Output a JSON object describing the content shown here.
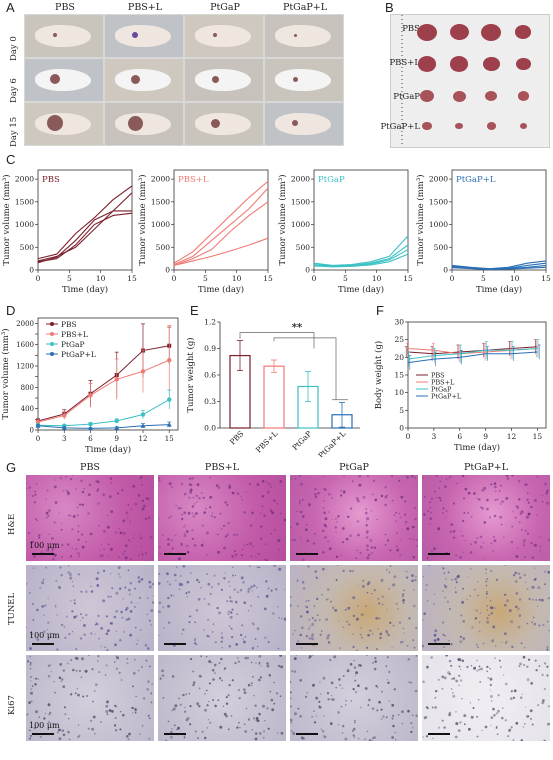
{
  "panels": {
    "A": "A",
    "B": "B",
    "C": "C",
    "D": "D",
    "E": "E",
    "F": "F",
    "G": "G"
  },
  "groups": [
    "PBS",
    "PBS+L",
    "PtGaP",
    "PtGaP+L"
  ],
  "days_A": [
    "Day 0",
    "Day 6",
    "Day 15"
  ],
  "panelC_titles": [
    "PBS",
    "PBS+L",
    "PtGaP",
    "PtGaP+L"
  ],
  "panelG_rows": [
    "H&E",
    "TUNEL",
    "Ki67"
  ],
  "scale_label": "100 μm",
  "colors": {
    "PBS": "#7a1f2b",
    "PBS+L": "#f07a74",
    "PtGaP": "#3cc1c4",
    "PtGaP+L": "#2a6fb5",
    "he": "#c86bb0",
    "tunel": "#b7b0c9",
    "ki67": "#c2bdcf"
  },
  "significance": "**",
  "chart_data": [
    {
      "type": "line",
      "panel": "C-PBS",
      "title": "PBS",
      "xlabel": "Time (day)",
      "ylabel": "Tumor volume (mm³)",
      "xlim": [
        0,
        15
      ],
      "ylim": [
        0,
        2200
      ],
      "xticks": [
        0,
        5,
        10,
        15
      ],
      "yticks": [
        0,
        500,
        1000,
        1500,
        2000
      ],
      "series": [
        {
          "x": [
            0,
            3,
            6,
            9,
            12,
            15
          ],
          "values": [
            250,
            350,
            800,
            1150,
            1550,
            1850
          ]
        },
        {
          "x": [
            0,
            3,
            6,
            9,
            12,
            15
          ],
          "values": [
            200,
            300,
            500,
            900,
            1300,
            1700
          ]
        },
        {
          "x": [
            0,
            3,
            6,
            9,
            12,
            15
          ],
          "values": [
            180,
            250,
            550,
            1000,
            1200,
            1250
          ]
        },
        {
          "x": [
            0,
            3,
            6,
            9,
            12,
            15
          ],
          "values": [
            160,
            280,
            650,
            1100,
            1300,
            1300
          ]
        }
      ]
    },
    {
      "type": "line",
      "panel": "C-PBS+L",
      "title": "PBS+L",
      "xlabel": "Time (day)",
      "ylabel": "Tumor volume (mm³)",
      "xlim": [
        0,
        15
      ],
      "ylim": [
        0,
        2200
      ],
      "xticks": [
        0,
        5,
        10,
        15
      ],
      "yticks": [
        0,
        500,
        1000,
        1500,
        2000
      ],
      "series": [
        {
          "x": [
            0,
            3,
            6,
            9,
            12,
            15
          ],
          "values": [
            150,
            400,
            800,
            1200,
            1600,
            1950
          ]
        },
        {
          "x": [
            0,
            3,
            6,
            9,
            12,
            15
          ],
          "values": [
            120,
            300,
            650,
            1000,
            1350,
            1800
          ]
        },
        {
          "x": [
            0,
            3,
            6,
            9,
            12,
            15
          ],
          "values": [
            100,
            250,
            450,
            850,
            1200,
            1500
          ]
        },
        {
          "x": [
            0,
            3,
            6,
            9,
            12,
            15
          ],
          "values": [
            100,
            200,
            300,
            420,
            550,
            700
          ]
        }
      ]
    },
    {
      "type": "line",
      "panel": "C-PtGaP",
      "title": "PtGaP",
      "xlabel": "Time (day)",
      "ylabel": "Tumor volume (mm³)",
      "xlim": [
        0,
        15
      ],
      "ylim": [
        0,
        2200
      ],
      "xticks": [
        0,
        5,
        10,
        15
      ],
      "yticks": [
        0,
        500,
        1000,
        1500,
        2000
      ],
      "series": [
        {
          "x": [
            0,
            3,
            6,
            9,
            12,
            15
          ],
          "values": [
            150,
            100,
            120,
            180,
            300,
            750
          ]
        },
        {
          "x": [
            0,
            3,
            6,
            9,
            12,
            15
          ],
          "values": [
            120,
            90,
            100,
            150,
            250,
            550
          ]
        },
        {
          "x": [
            0,
            3,
            6,
            9,
            12,
            15
          ],
          "values": [
            100,
            80,
            90,
            130,
            220,
            450
          ]
        },
        {
          "x": [
            0,
            3,
            6,
            9,
            12,
            15
          ],
          "values": [
            90,
            70,
            80,
            110,
            180,
            350
          ]
        }
      ]
    },
    {
      "type": "line",
      "panel": "C-PtGaP+L",
      "title": "PtGaP+L",
      "xlabel": "Time (day)",
      "ylabel": "Tumor volume (mm³)",
      "xlim": [
        0,
        15
      ],
      "ylim": [
        0,
        2200
      ],
      "xticks": [
        0,
        5,
        10,
        15
      ],
      "yticks": [
        0,
        500,
        1000,
        1500,
        2000
      ],
      "series": [
        {
          "x": [
            0,
            3,
            6,
            9,
            12,
            15
          ],
          "values": [
            100,
            60,
            30,
            60,
            150,
            200
          ]
        },
        {
          "x": [
            0,
            3,
            6,
            9,
            12,
            15
          ],
          "values": [
            80,
            50,
            20,
            40,
            100,
            150
          ]
        },
        {
          "x": [
            0,
            3,
            6,
            9,
            12,
            15
          ],
          "values": [
            60,
            40,
            15,
            30,
            60,
            100
          ]
        },
        {
          "x": [
            0,
            3,
            6,
            9,
            12,
            15
          ],
          "values": [
            50,
            30,
            10,
            20,
            40,
            60
          ]
        }
      ]
    },
    {
      "type": "line",
      "panel": "D",
      "xlabel": "Time (day)",
      "ylabel": "Tumor volume (mm³)",
      "xlim": [
        0,
        16
      ],
      "ylim": [
        0,
        2100
      ],
      "xticks": [
        0,
        3,
        6,
        9,
        12,
        15
      ],
      "yticks": [
        0,
        200,
        400,
        600,
        800,
        1000,
        1200,
        1400,
        1600,
        1800,
        2000
      ],
      "x": [
        0,
        3,
        6,
        9,
        12,
        15
      ],
      "series": [
        {
          "name": "PBS",
          "values": [
            170,
            300,
            680,
            1030,
            1490,
            1580
          ],
          "err": [
            40,
            80,
            250,
            430,
            500,
            350
          ]
        },
        {
          "name": "PBS+L",
          "values": [
            150,
            270,
            650,
            950,
            1100,
            1310
          ],
          "err": [
            40,
            70,
            220,
            380,
            400,
            650
          ]
        },
        {
          "name": "PtGaP",
          "values": [
            90,
            80,
            110,
            170,
            290,
            570
          ],
          "err": [
            20,
            20,
            30,
            40,
            80,
            180
          ]
        },
        {
          "name": "PtGaP+L",
          "values": [
            80,
            40,
            30,
            40,
            80,
            100
          ],
          "err": [
            20,
            20,
            15,
            20,
            40,
            50
          ]
        }
      ]
    },
    {
      "type": "bar",
      "panel": "E",
      "ylabel": "Tumor weight (g)",
      "categories": [
        "PBS",
        "PBS+L",
        "PtGaP",
        "PtGaP+L"
      ],
      "values": [
        0.82,
        0.7,
        0.47,
        0.15
      ],
      "err": [
        0.17,
        0.07,
        0.17,
        0.14
      ],
      "ylim": [
        0,
        1.2
      ],
      "yticks": [
        0.0,
        0.3,
        0.6,
        0.9,
        1.2
      ]
    },
    {
      "type": "line",
      "panel": "F",
      "xlabel": "Time (day)",
      "ylabel": "Body weight (g)",
      "xlim": [
        0,
        16
      ],
      "ylim": [
        0,
        30
      ],
      "xticks": [
        0,
        3,
        6,
        9,
        12,
        15
      ],
      "yticks": [
        0,
        5,
        10,
        15,
        20,
        25,
        30
      ],
      "x": [
        0,
        3,
        6,
        9,
        12,
        15
      ],
      "series": [
        {
          "name": "PBS",
          "values": [
            21.5,
            21.0,
            21.5,
            22.0,
            22.5,
            23.0
          ],
          "err": [
            1.5,
            2,
            2,
            2,
            2,
            2
          ]
        },
        {
          "name": "PBS+L",
          "values": [
            22.5,
            22.0,
            21.0,
            21.5,
            22.0,
            22.5
          ],
          "err": [
            1.5,
            2,
            2.5,
            2.5,
            2.5,
            2.5
          ]
        },
        {
          "name": "PtGaP",
          "values": [
            19.5,
            20.5,
            21.0,
            22.0,
            22.0,
            22.5
          ],
          "err": [
            2,
            2,
            2.5,
            2.5,
            2.5,
            2.5
          ]
        },
        {
          "name": "PtGaP+L",
          "values": [
            18.5,
            19.5,
            20.0,
            21.0,
            21.0,
            21.5
          ],
          "err": [
            2,
            2,
            2,
            2,
            2,
            2
          ]
        }
      ]
    }
  ]
}
